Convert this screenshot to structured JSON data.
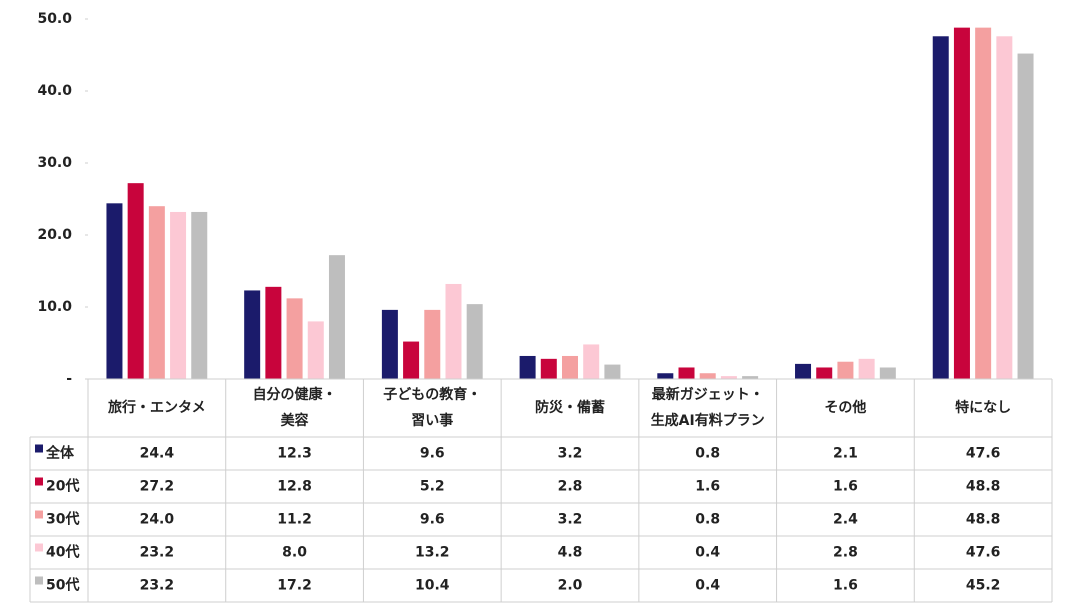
{
  "chart_data": {
    "type": "bar",
    "categories": [
      "旅行・エンタメ",
      "自分の健康・\n美容",
      "子どもの教育・\n習い事",
      "防災・備蓄",
      "最新ガジェット・\n生成AI有料プラン",
      "その他",
      "特になし"
    ],
    "series": [
      {
        "name": "全体",
        "color": "#1b1b6b",
        "values": [
          24.4,
          12.3,
          9.6,
          3.2,
          0.8,
          2.1,
          47.6
        ],
        "value_labels": [
          "24.4",
          "12.3",
          "9.6",
          "3.2",
          "0.8",
          "2.1",
          "47.6"
        ]
      },
      {
        "name": "20代",
        "color": "#c8043c",
        "values": [
          27.2,
          12.8,
          5.2,
          2.8,
          1.6,
          1.6,
          48.8
        ],
        "value_labels": [
          "27.2",
          "12.8",
          "5.2",
          "2.8",
          "1.6",
          "1.6",
          "48.8"
        ]
      },
      {
        "name": "30代",
        "color": "#f4a0a0",
        "values": [
          24.0,
          11.2,
          9.6,
          3.2,
          0.8,
          2.4,
          48.8
        ],
        "value_labels": [
          "24.0",
          "11.2",
          "9.6",
          "3.2",
          "0.8",
          "2.4",
          "48.8"
        ]
      },
      {
        "name": "40代",
        "color": "#fcc8d4",
        "values": [
          23.2,
          8.0,
          13.2,
          4.8,
          0.4,
          2.8,
          47.6
        ],
        "value_labels": [
          "23.2",
          "8.0",
          "13.2",
          "4.8",
          "0.4",
          "2.8",
          "47.6"
        ]
      },
      {
        "name": "50代",
        "color": "#bebebe",
        "values": [
          23.2,
          17.2,
          10.4,
          2.0,
          0.4,
          1.6,
          45.2
        ],
        "value_labels": [
          "23.2",
          "17.2",
          "10.4",
          "2.0",
          "0.4",
          "1.6",
          "45.2"
        ]
      }
    ],
    "ylim": [
      0,
      50
    ],
    "yticks": [
      {
        "value": 0,
        "label": "-"
      },
      {
        "value": 10,
        "label": "10.0"
      },
      {
        "value": 20,
        "label": "20.0"
      },
      {
        "value": 30,
        "label": "30.0"
      },
      {
        "value": 40,
        "label": "40.0"
      },
      {
        "value": 50,
        "label": "50.0"
      }
    ],
    "grid": false
  }
}
